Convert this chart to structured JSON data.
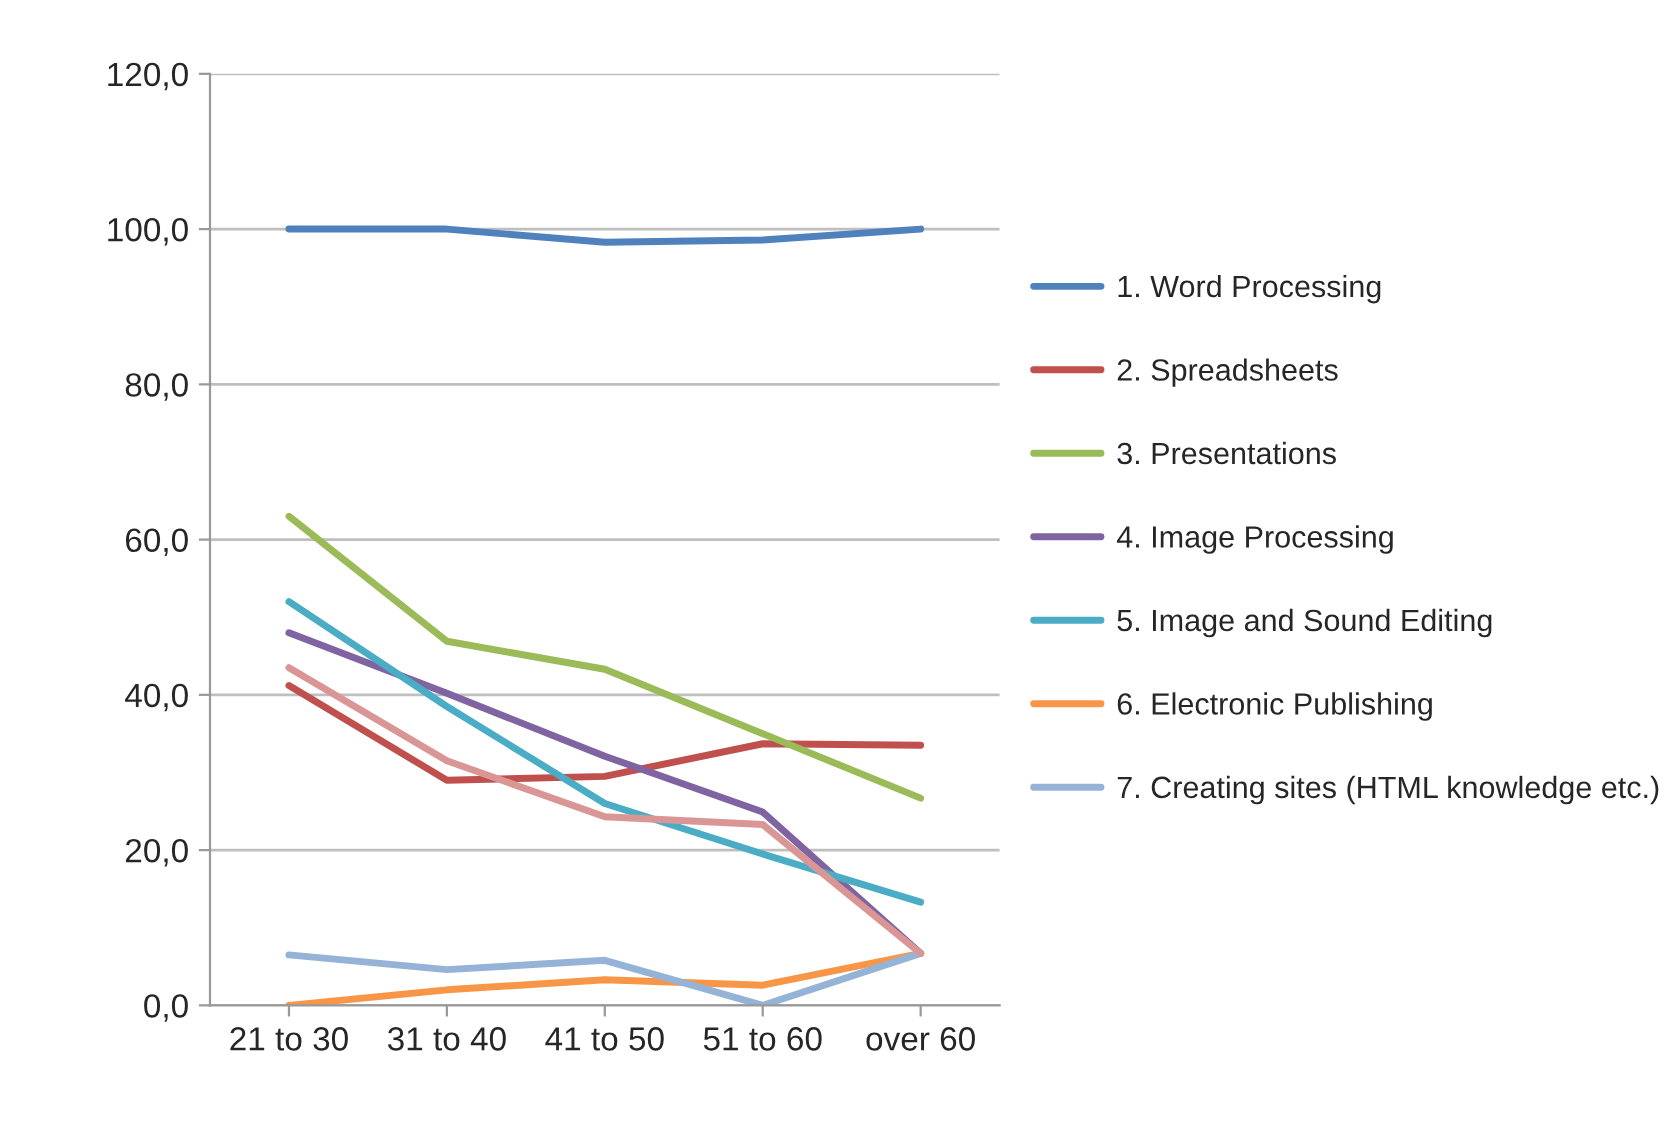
{
  "chart_data": {
    "type": "line",
    "categories": [
      "21 to 30",
      "31 to 40",
      "41 to 50",
      "51 to 60",
      "over 60"
    ],
    "series": [
      {
        "name": "1. Word Processing",
        "color": "#4f81bd",
        "values": [
          100.0,
          100.0,
          98.3,
          98.6,
          100.0
        ]
      },
      {
        "name": "2. Spreadsheets",
        "color": "#c0504d",
        "values": [
          41.2,
          29.0,
          29.5,
          33.7,
          33.5
        ]
      },
      {
        "name": "3. Presentations",
        "color": "#9bbb59",
        "values": [
          63.0,
          46.9,
          43.3,
          35.0,
          26.7
        ]
      },
      {
        "name": "4. Image Processing",
        "color": "#8064a2",
        "values": [
          48.0,
          40.2,
          32.1,
          24.9,
          6.7
        ]
      },
      {
        "name": "5. Image and Sound Editing",
        "color": "#4bacc6",
        "values": [
          52.0,
          38.5,
          26.0,
          19.5,
          13.3
        ]
      },
      {
        "name": "6. Electronic Publishing",
        "color": "#f79646",
        "values": [
          0.0,
          2.0,
          3.3,
          2.6,
          6.7
        ]
      },
      {
        "name": "7. Creating sites (HTML knowledge etc.)",
        "color": "#95b3d7",
        "values": [
          6.5,
          4.6,
          5.8,
          0.0,
          6.7
        ]
      },
      {
        "color": "#da9694",
        "values": [
          43.5,
          31.5,
          24.3,
          23.3,
          6.7
        ]
      }
    ],
    "ylim": [
      0,
      120
    ],
    "yticks": [
      {
        "value": 0,
        "label": "0,0"
      },
      {
        "value": 20,
        "label": "20,0"
      },
      {
        "value": 40,
        "label": "40,0"
      },
      {
        "value": 60,
        "label": "60,0"
      },
      {
        "value": 80,
        "label": "80,0"
      },
      {
        "value": 100,
        "label": "100,0"
      },
      {
        "value": 120,
        "label": "120,0"
      }
    ],
    "grid": "y",
    "legend": "right",
    "marker": "none",
    "line_style": "solid"
  }
}
